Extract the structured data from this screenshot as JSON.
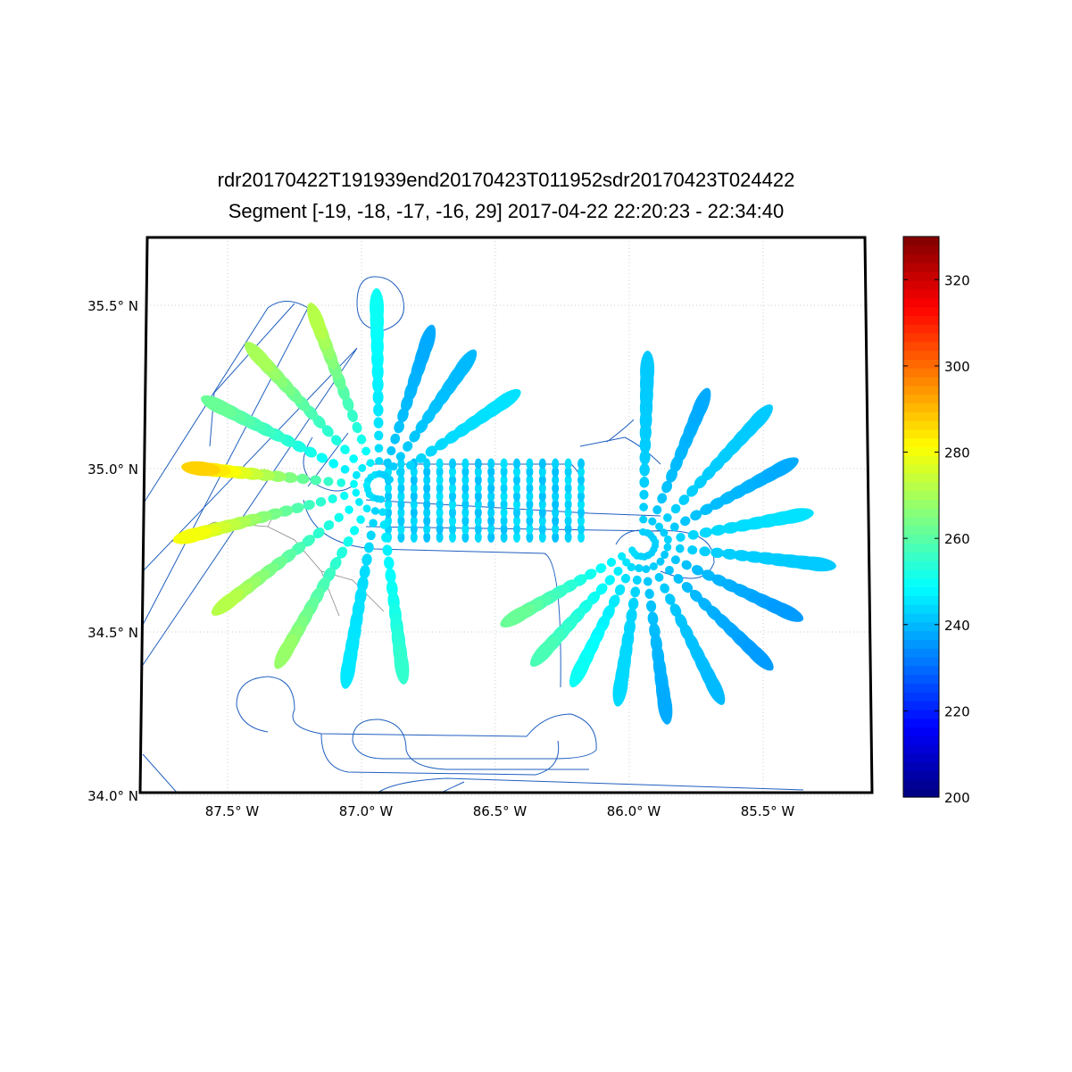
{
  "chart_data": {
    "type": "scatter",
    "title": "rdr20170422T191939end20170423T011952sdr20170423T024422",
    "subtitle": "Segment [-19, -18, -17, -16, 29] 2017-04-22 22:20:23 - 22:34:40",
    "lat_ticks": [
      {
        "v": 35.5,
        "label": "35.5° N"
      },
      {
        "v": 35.0,
        "label": "35.0° N"
      },
      {
        "v": 34.5,
        "label": "34.5° N"
      },
      {
        "v": 34.0,
        "label": "34.0° N"
      }
    ],
    "lon_ticks": [
      {
        "v": -87.5,
        "label": "87.5° W"
      },
      {
        "v": -87.0,
        "label": "87.0° W"
      },
      {
        "v": -86.5,
        "label": "86.5° W"
      },
      {
        "v": -86.0,
        "label": "86.0° W"
      },
      {
        "v": -85.5,
        "label": "85.5° W"
      }
    ],
    "grid": true,
    "colorbar": {
      "min": 200,
      "max": 330,
      "ticks": [
        200,
        220,
        240,
        260,
        280,
        300,
        320
      ],
      "colormap": "jet",
      "position": "right"
    },
    "centers": [
      {
        "lon": -86.933,
        "lat": 34.945,
        "spokes": [
          {
            "lon": -87.167,
            "lat": 35.451,
            "value": 272
          },
          {
            "lon": -87.383,
            "lat": 35.342,
            "value": 270
          },
          {
            "lon": -87.533,
            "lat": 35.191,
            "value": 262
          },
          {
            "lon": -87.6,
            "lat": 35.0,
            "value": 287
          },
          {
            "lon": -87.633,
            "lat": 34.795,
            "value": 280
          },
          {
            "lon": -87.5,
            "lat": 34.59,
            "value": 272
          },
          {
            "lon": -87.283,
            "lat": 34.44,
            "value": 268
          },
          {
            "lon": -87.05,
            "lat": 34.385,
            "value": 246
          },
          {
            "lon": -86.85,
            "lat": 34.399,
            "value": 255
          },
          {
            "lon": -86.943,
            "lat": 35.492,
            "value": 250
          },
          {
            "lon": -86.757,
            "lat": 35.383,
            "value": 238
          },
          {
            "lon": -86.617,
            "lat": 35.314,
            "value": 240
          },
          {
            "lon": -86.467,
            "lat": 35.205,
            "value": 245
          }
        ]
      },
      {
        "lon": -85.95,
        "lat": 34.768,
        "spokes": [
          {
            "lon": -85.933,
            "lat": 35.301,
            "value": 242
          },
          {
            "lon": -85.733,
            "lat": 35.191,
            "value": 238
          },
          {
            "lon": -85.517,
            "lat": 35.15,
            "value": 242
          },
          {
            "lon": -85.433,
            "lat": 35.0,
            "value": 238
          },
          {
            "lon": -85.383,
            "lat": 34.855,
            "value": 245
          },
          {
            "lon": -85.3,
            "lat": 34.708,
            "value": 242
          },
          {
            "lon": -85.417,
            "lat": 34.563,
            "value": 236
          },
          {
            "lon": -85.517,
            "lat": 34.426,
            "value": 236
          },
          {
            "lon": -85.683,
            "lat": 34.331,
            "value": 240
          },
          {
            "lon": -85.867,
            "lat": 34.276,
            "value": 238
          },
          {
            "lon": -86.033,
            "lat": 34.331,
            "value": 244
          },
          {
            "lon": -86.183,
            "lat": 34.385,
            "value": 250
          },
          {
            "lon": -86.317,
            "lat": 34.44,
            "value": 258
          },
          {
            "lon": -86.417,
            "lat": 34.549,
            "value": 262
          }
        ]
      }
    ],
    "grid_scan": {
      "lon_min": -86.9,
      "lon_max": -86.18,
      "lat_min": 34.79,
      "lat_max": 35.02,
      "columns": 16,
      "value": 243
    }
  }
}
